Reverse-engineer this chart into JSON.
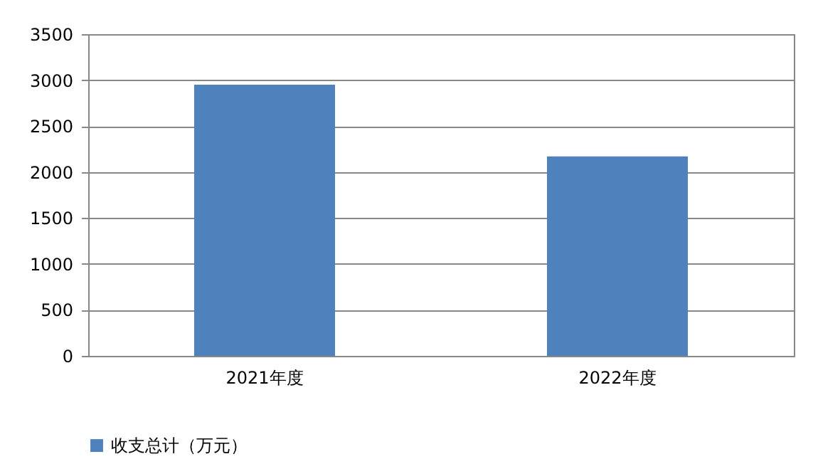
{
  "chart_data": {
    "type": "bar",
    "categories": [
      "2021年度",
      "2022年度"
    ],
    "series": [
      {
        "name": "收支总计（万元）",
        "color": "#4f81bd",
        "values": [
          2950,
          2170
        ]
      }
    ],
    "ylim": [
      0,
      3500
    ],
    "yticks": [
      0,
      500,
      1000,
      1500,
      2000,
      2500,
      3000,
      3500
    ],
    "grid": "y",
    "legend": "bottom"
  }
}
